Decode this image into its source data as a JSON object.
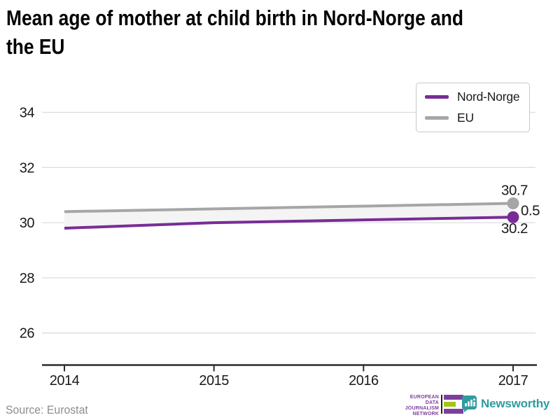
{
  "title": "Mean age of mother at child birth in Nord-Norge and\nthe EU",
  "legend": {
    "items": [
      {
        "label": "Nord-Norge",
        "color": "#782d96"
      },
      {
        "label": "EU",
        "color": "#a6a6a6"
      }
    ]
  },
  "chart_data": {
    "type": "line",
    "title": "Mean age of mother at child birth in Nord-Norge and the EU",
    "x": [
      "2014",
      "2015",
      "2016",
      "2017"
    ],
    "series": [
      {
        "name": "Nord-Norge",
        "color": "#782d96",
        "values": [
          29.8,
          30.0,
          30.1,
          30.2
        ]
      },
      {
        "name": "EU",
        "color": "#a6a6a6",
        "values": [
          30.4,
          30.5,
          30.6,
          30.7
        ]
      }
    ],
    "yticks": [
      26,
      28,
      30,
      32,
      34
    ],
    "ylim": [
      24.9,
      34.9
    ],
    "grid": true,
    "legend_position": "top-right",
    "band_between_series": true,
    "annotations": [
      {
        "text": "30.7",
        "series": "EU",
        "position": "above-last-point"
      },
      {
        "text": "0.5",
        "meaning": "difference-between-series",
        "position": "right-of-last-points"
      },
      {
        "text": "30.2",
        "series": "Nord-Norge",
        "position": "below-last-point"
      }
    ]
  },
  "colors": {
    "nord_norge": "#782d96",
    "eu": "#a6a6a6",
    "band": "#f4f4f4",
    "grid": "#dcdcdc",
    "axis": "#2b2b2b",
    "text": "#1a1a1a",
    "source": "#8e8e8e",
    "edjn_purple": "#7d3f9d",
    "edjn_green": "#a2c516",
    "newsworthy_teal": "#2e9c9e"
  },
  "footer": {
    "source": "Source: Eurostat",
    "edjn": {
      "lines": [
        "EUROPEAN",
        "DATA JOURNALISM",
        "NETWORK"
      ]
    },
    "newsworthy": {
      "label": "Newsworthy"
    }
  }
}
